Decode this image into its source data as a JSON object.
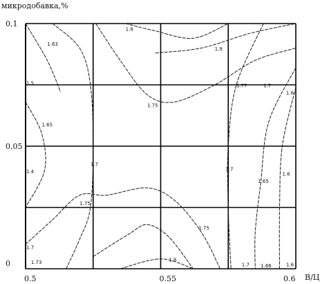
{
  "chart_data": {
    "type": "contour",
    "ylabel": "микродобавка,%",
    "xlabel": "В/Ц",
    "xlim": [
      0.5,
      0.6
    ],
    "ylim": [
      0,
      0.1
    ],
    "x_tick_labels": [
      "0.5",
      "0.55",
      "0.6"
    ],
    "y_tick_labels": [
      "0",
      "0,05",
      "0,1"
    ],
    "grid": true,
    "grid_x": [
      0.5,
      0.525,
      0.55,
      0.575,
      0.6
    ],
    "grid_y": [
      0,
      0.025,
      0.05,
      0.075,
      0.1
    ],
    "contours": [
      {
        "level": "1.63",
        "points": [
          [
            0.5,
            0.1
          ],
          [
            0.508,
            0.085
          ],
          [
            0.513,
            0.072
          ]
        ]
      },
      {
        "level": "1.6",
        "points": [
          [
            0.51,
            0.1
          ],
          [
            0.52,
            0.09
          ],
          [
            0.524,
            0.075
          ],
          [
            0.525,
            0.05
          ],
          [
            0.524,
            0.025
          ],
          [
            0.52,
            0.012
          ],
          [
            0.515,
            0.0
          ]
        ]
      },
      {
        "level": "1.65",
        "points": [
          [
            0.5,
            0.068
          ],
          [
            0.506,
            0.055
          ],
          [
            0.507,
            0.04
          ],
          [
            0.5,
            0.025
          ]
        ]
      },
      {
        "level": "1.7",
        "points": [
          [
            0.5,
            0.01
          ],
          [
            0.51,
            0.02
          ],
          [
            0.52,
            0.03
          ],
          [
            0.53,
            0.03
          ],
          [
            0.545,
            0.033
          ],
          [
            0.555,
            0.028
          ],
          [
            0.565,
            0.015
          ],
          [
            0.572,
            0.0
          ]
        ]
      },
      {
        "level": "1.75",
        "points": [
          [
            0.525,
            0.005
          ],
          [
            0.538,
            0.014
          ],
          [
            0.545,
            0.018
          ],
          [
            0.553,
            0.013
          ],
          [
            0.562,
            0.0
          ]
        ]
      },
      {
        "level": "1.8",
        "points": [
          [
            0.535,
            0.0
          ],
          [
            0.55,
            0.004
          ],
          [
            0.562,
            0.0
          ]
        ]
      },
      {
        "level": "1.8",
        "points": [
          [
            0.537,
            0.1
          ],
          [
            0.548,
            0.097
          ],
          [
            0.562,
            0.094
          ],
          [
            0.575,
            0.1
          ]
        ]
      },
      {
        "level": "1.75",
        "points": [
          [
            0.526,
            0.1
          ],
          [
            0.535,
            0.085
          ],
          [
            0.545,
            0.071
          ],
          [
            0.555,
            0.068
          ],
          [
            0.57,
            0.075
          ],
          [
            0.585,
            0.085
          ],
          [
            0.6,
            0.09
          ]
        ]
      },
      {
        "level": "1.9",
        "points": [
          [
            0.548,
            0.088
          ],
          [
            0.565,
            0.09
          ],
          [
            0.583,
            0.096
          ],
          [
            0.6,
            0.1
          ]
        ]
      },
      {
        "level": "1.7",
        "points": [
          [
            0.588,
            0.1
          ],
          [
            0.578,
            0.075
          ],
          [
            0.575,
            0.05
          ],
          [
            0.575,
            0.025
          ],
          [
            0.576,
            0.0
          ]
        ]
      },
      {
        "level": "1.65",
        "points": [
          [
            0.6,
            0.082
          ],
          [
            0.59,
            0.06
          ],
          [
            0.587,
            0.035
          ],
          [
            0.585,
            0.015
          ],
          [
            0.585,
            0.0
          ]
        ]
      },
      {
        "level": "1.6",
        "points": [
          [
            0.6,
            0.074
          ],
          [
            0.595,
            0.05
          ],
          [
            0.594,
            0.025
          ],
          [
            0.594,
            0.0
          ]
        ]
      }
    ],
    "contour_labels": [
      {
        "text": "1.63",
        "x": 0.508,
        "y": 0.091
      },
      {
        "text": "1.5",
        "x": 0.5,
        "y": 0.075
      },
      {
        "text": "1.65",
        "x": 0.506,
        "y": 0.058
      },
      {
        "text": "1.4",
        "x": 0.5,
        "y": 0.039
      },
      {
        "text": "1.7",
        "x": 0.5,
        "y": 0.008
      },
      {
        "text": "1.73",
        "x": 0.502,
        "y": 0.002
      },
      {
        "text": "1.75",
        "x": 0.52,
        "y": 0.026
      },
      {
        "text": "1.7",
        "x": 0.524,
        "y": 0.042
      },
      {
        "text": "1.75",
        "x": 0.545,
        "y": 0.066
      },
      {
        "text": "1.8",
        "x": 0.537,
        "y": 0.097
      },
      {
        "text": "1.9",
        "x": 0.57,
        "y": 0.089
      },
      {
        "text": "1.77",
        "x": 0.578,
        "y": 0.074
      },
      {
        "text": "1.7",
        "x": 0.588,
        "y": 0.074
      },
      {
        "text": "1.6",
        "x": 0.598,
        "y": 0.071
      },
      {
        "text": "1.75",
        "x": 0.564,
        "y": 0.016
      },
      {
        "text": "1.8",
        "x": 0.553,
        "y": 0.003
      },
      {
        "text": "1.7",
        "x": 0.574,
        "y": 0.04
      },
      {
        "text": "1.65",
        "x": 0.586,
        "y": 0.035
      },
      {
        "text": "1.6",
        "x": 0.595,
        "y": 0.038
      },
      {
        "text": "1.7",
        "x": 0.58,
        "y": 0.001
      },
      {
        "text": "1.66",
        "x": 0.587,
        "y": 0.0
      },
      {
        "text": "1.6",
        "x": 0.597,
        "y": 0.001
      }
    ]
  }
}
